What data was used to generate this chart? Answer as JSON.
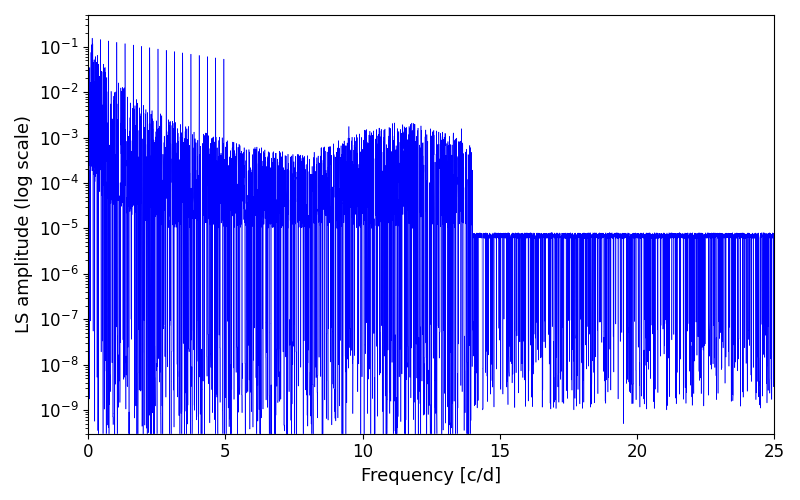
{
  "xlabel": "Frequency [c/d]",
  "ylabel": "LS amplitude (log scale)",
  "xlim": [
    0,
    25
  ],
  "ylim": [
    3e-10,
    0.5
  ],
  "line_color": "#0000ff",
  "line_width": 0.4,
  "background_color": "#ffffff",
  "xlabel_fontsize": 13,
  "ylabel_fontsize": 13,
  "tick_labelsize": 12,
  "seed": 42,
  "n_points": 10000,
  "freq_max": 25.0
}
